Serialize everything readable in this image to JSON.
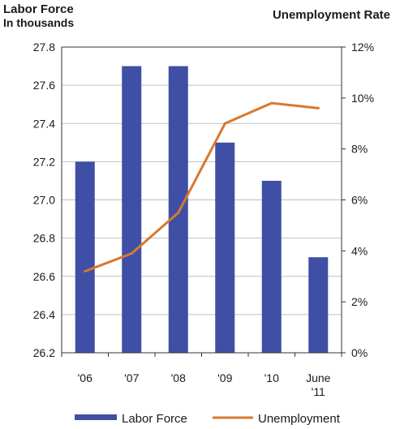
{
  "chart_data": {
    "type": "bar",
    "title_left": "Labor Force",
    "subtitle_left": "In thousands",
    "title_right": "Unemployment Rate",
    "categories": [
      "'06",
      "'07",
      "'08",
      "'09",
      "'10",
      "June\n'11"
    ],
    "category_lines": [
      [
        "'06"
      ],
      [
        "'07"
      ],
      [
        "'08"
      ],
      [
        "'09"
      ],
      [
        "'10"
      ],
      [
        "June",
        "'11"
      ]
    ],
    "series": [
      {
        "name": "Labor Force",
        "type": "bar",
        "axis": "left",
        "color": "#3f4fa6",
        "values": [
          27.2,
          27.7,
          27.7,
          27.3,
          27.1,
          26.7
        ]
      },
      {
        "name": "Unemployment",
        "type": "line",
        "axis": "right",
        "color": "#d9782e",
        "values": [
          3.2,
          3.9,
          5.5,
          9.0,
          9.8,
          9.6
        ]
      }
    ],
    "y_left": {
      "min": 26.2,
      "max": 27.8,
      "ticks": [
        "27.8",
        "27.6",
        "27.4",
        "27.2",
        "27.0",
        "26.8",
        "26.6",
        "26.4",
        "26.2"
      ]
    },
    "y_right": {
      "min": 0,
      "max": 12,
      "ticks": [
        "12%",
        "10%",
        "8%",
        "6%",
        "4%",
        "2%",
        "0%"
      ]
    },
    "grid": true,
    "legend_position": "bottom"
  }
}
